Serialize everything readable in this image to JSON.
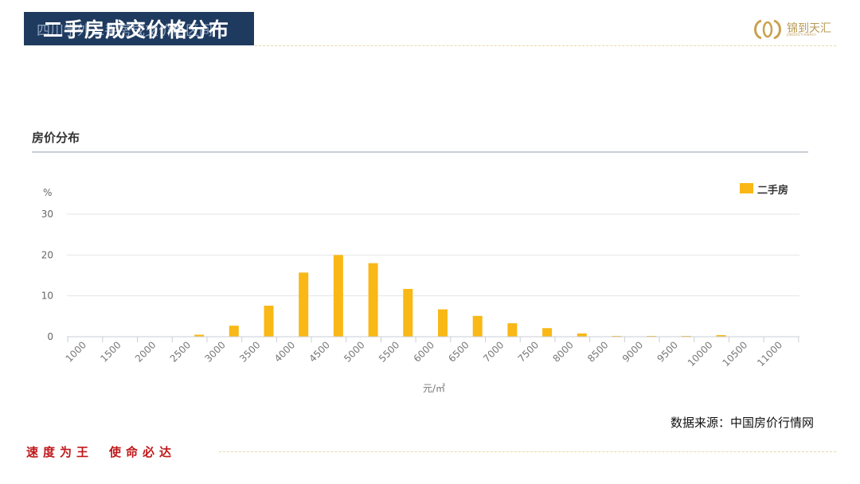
{
  "header": {
    "ghost_title": "四川学外二手房成交价格区间",
    "title": "二手房成交价格分布"
  },
  "logo": {
    "brand": "锦到天汇",
    "sub": "JINDAOTIANHUI"
  },
  "chart_heading": "房价分布",
  "chart_data": {
    "type": "bar",
    "title": "房价分布",
    "ylabel": "%",
    "xlabel": "元/㎡",
    "ylim": [
      0,
      30
    ],
    "yticks": [
      0,
      10,
      20,
      30
    ],
    "categories": [
      "1000",
      "1500",
      "2000",
      "2500",
      "3000",
      "3500",
      "4000",
      "4500",
      "5000",
      "5500",
      "6000",
      "6500",
      "7000",
      "7500",
      "8000",
      "8500",
      "9000",
      "9500",
      "10000",
      "10500",
      "11000"
    ],
    "series": [
      {
        "name": "二手房",
        "color": "#f9b816",
        "values": [
          0,
          0,
          0,
          0.5,
          2.7,
          7.6,
          15.7,
          20.0,
          18.0,
          11.7,
          6.7,
          5.1,
          3.3,
          2.1,
          0.8,
          0.2,
          0.2,
          0.2,
          0.4,
          0,
          0
        ]
      }
    ],
    "grid": true,
    "legend": "top-right"
  },
  "source": "数据来源：中国房价行情网",
  "slogan": {
    "left": "速度为王",
    "right": "使命必达"
  }
}
